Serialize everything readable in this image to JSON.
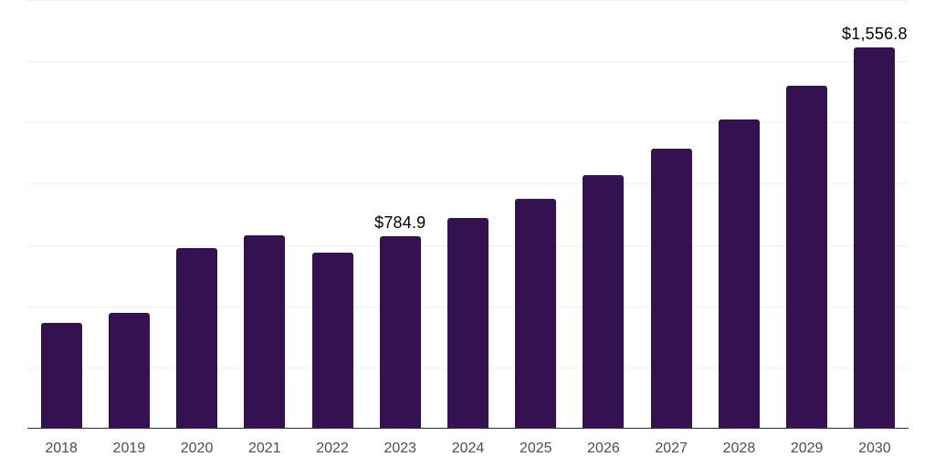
{
  "chart_data": {
    "type": "bar",
    "title": "",
    "xlabel": "",
    "ylabel": "",
    "categories": [
      "2018",
      "2019",
      "2020",
      "2021",
      "2022",
      "2023",
      "2024",
      "2025",
      "2026",
      "2027",
      "2028",
      "2029",
      "2030"
    ],
    "values": [
      432,
      474,
      737,
      789,
      717,
      784.9,
      859,
      939,
      1035,
      1144,
      1263,
      1399,
      1556.8
    ],
    "data_labels": [
      "",
      "",
      "",
      "",
      "",
      "$784.9",
      "",
      "",
      "",
      "",
      "",
      "",
      "$1,556.8"
    ],
    "ylim": [
      0,
      1750
    ],
    "gridline_step": 250,
    "grid": "horizontal-only",
    "legend": "none",
    "y_axis_tick_labels": "none",
    "colors": {
      "bar": "#341150",
      "gridline": "#efefef",
      "axis_line": "#2a2a2a",
      "tick_label": "#4d4d4d",
      "value_label": "#000000",
      "background": "#ffffff"
    }
  }
}
